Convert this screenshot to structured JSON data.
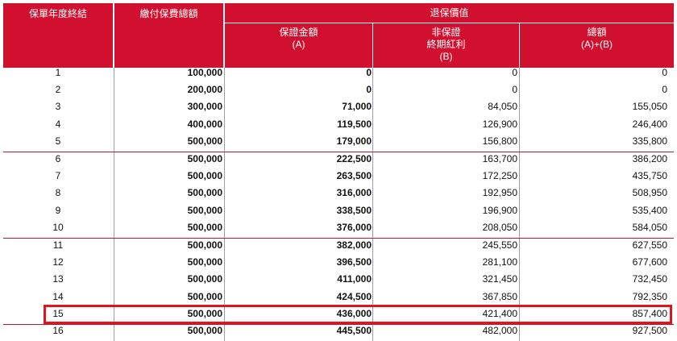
{
  "header": {
    "year_end": "保單年度終結",
    "premium_paid": "繳付保費總額",
    "surrender_value": "退保價值",
    "guaranteed": "保證金額\n(A)",
    "bonus": "非保證\n終期紅利\n(B)",
    "total": "總額\n(A)+(B)"
  },
  "rows": [
    {
      "year": "1",
      "premium": "100,000",
      "guaranteed": "0",
      "bonus": "0",
      "total": "0"
    },
    {
      "year": "2",
      "premium": "200,000",
      "guaranteed": "0",
      "bonus": "0",
      "total": "0"
    },
    {
      "year": "3",
      "premium": "300,000",
      "guaranteed": "71,000",
      "bonus": "84,050",
      "total": "155,050"
    },
    {
      "year": "4",
      "premium": "400,000",
      "guaranteed": "119,500",
      "bonus": "126,900",
      "total": "246,400"
    },
    {
      "year": "5",
      "premium": "500,000",
      "guaranteed": "179,000",
      "bonus": "156,800",
      "total": "335,800"
    },
    {
      "year": "6",
      "premium": "500,000",
      "guaranteed": "222,500",
      "bonus": "163,700",
      "total": "386,200"
    },
    {
      "year": "7",
      "premium": "500,000",
      "guaranteed": "263,500",
      "bonus": "172,250",
      "total": "435,750"
    },
    {
      "year": "8",
      "premium": "500,000",
      "guaranteed": "316,000",
      "bonus": "192,950",
      "total": "508,950"
    },
    {
      "year": "9",
      "premium": "500,000",
      "guaranteed": "338,500",
      "bonus": "196,900",
      "total": "535,400"
    },
    {
      "year": "10",
      "premium": "500,000",
      "guaranteed": "376,000",
      "bonus": "208,050",
      "total": "584,050"
    },
    {
      "year": "11",
      "premium": "500,000",
      "guaranteed": "382,000",
      "bonus": "245,550",
      "total": "627,550"
    },
    {
      "year": "12",
      "premium": "500,000",
      "guaranteed": "396,500",
      "bonus": "281,100",
      "total": "677,600"
    },
    {
      "year": "13",
      "premium": "500,000",
      "guaranteed": "411,000",
      "bonus": "321,450",
      "total": "732,450"
    },
    {
      "year": "14",
      "premium": "500,000",
      "guaranteed": "424,500",
      "bonus": "367,850",
      "total": "792,350"
    },
    {
      "year": "15",
      "premium": "500,000",
      "guaranteed": "436,000",
      "bonus": "421,400",
      "total": "857,400"
    },
    {
      "year": "16",
      "premium": "500,000",
      "guaranteed": "445,500",
      "bonus": "482,000",
      "total": "927,500"
    }
  ],
  "highlighted_year": "15",
  "colors": {
    "header_bg": "#d0102e",
    "highlight": "#e3131e",
    "divider": "#c2182f"
  }
}
